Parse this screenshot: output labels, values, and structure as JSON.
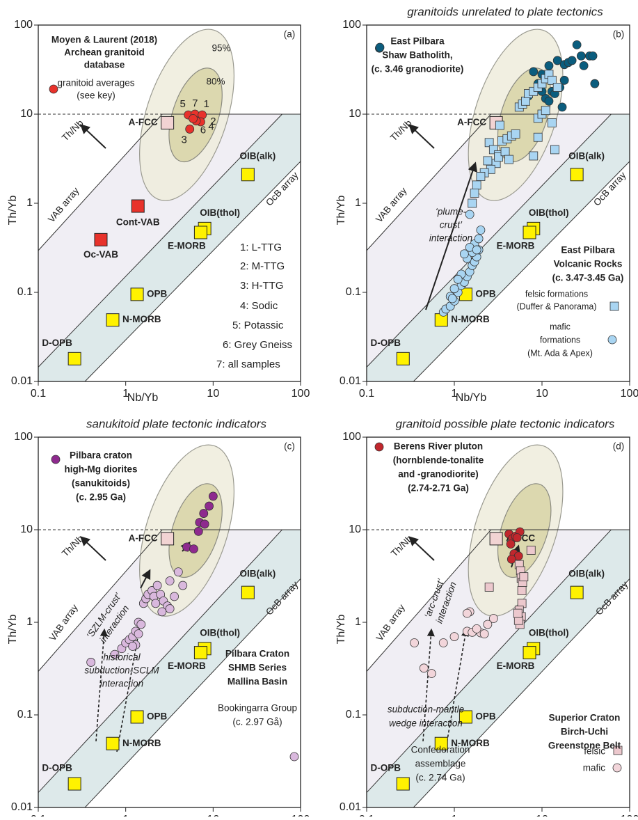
{
  "chart_data": [
    {
      "type": "scatter",
      "panel": "(a)",
      "xlabel": "Nb/Yb",
      "ylabel": "Th/Yb",
      "log_x": true,
      "log_y": true,
      "xlim": [
        0.1,
        100
      ],
      "ylim": [
        0.01,
        100
      ],
      "xticks": [
        0.1,
        1,
        10,
        100
      ],
      "yticks": [
        0.01,
        0.1,
        1,
        10,
        100
      ],
      "references": [
        {
          "label": "A-FCC",
          "x": 3,
          "y": 8,
          "color": "#f2d3d3"
        },
        {
          "label": "OIB(alk)",
          "x": 25,
          "y": 2.1,
          "color": "#fff200"
        },
        {
          "label": "OIB(thol)",
          "x": 8,
          "y": 0.52,
          "color": "#fff200"
        },
        {
          "label": "E-MORB",
          "x": 7.2,
          "y": 0.47,
          "color": "#fff200"
        },
        {
          "label": "OPB",
          "x": 1.35,
          "y": 0.095,
          "color": "#fff200"
        },
        {
          "label": "N-MORB",
          "x": 0.71,
          "y": 0.049,
          "color": "#fff200"
        },
        {
          "label": "D-OPB",
          "x": 0.26,
          "y": 0.018,
          "color": "#fff200"
        },
        {
          "label": "Cont-VAB",
          "x": 1.38,
          "y": 0.93,
          "color": "#e8322b"
        },
        {
          "label": "Oc-VAB",
          "x": 0.52,
          "y": 0.39,
          "color": "#e8322b"
        }
      ],
      "series": [
        {
          "name": [
            "granitoid averages",
            "(see key)"
          ],
          "color": "#e8322b",
          "marker": "circle",
          "labels": [
            "5",
            "7",
            "1",
            "2",
            "3",
            "6",
            "4"
          ],
          "x": [
            5.2,
            6.2,
            7.5,
            7.2,
            5.4,
            6.4,
            5.9
          ],
          "y": [
            9.8,
            10,
            9.8,
            8.2,
            6.8,
            8.4,
            8.9
          ]
        }
      ],
      "notes": [
        "Moyen & Laurent (2018)",
        "Archean granitoid",
        "database",
        "95%",
        "80%",
        "Th/Nb",
        "VAB array",
        "OcB array",
        "1: L-TTG",
        "2: M-TTG",
        "3: H-TTG",
        "4: Sodic",
        "5: Potassic",
        "6: Grey Gneiss",
        "7: all samples"
      ]
    },
    {
      "type": "scatter",
      "title": "granitoids unrelated to plate tectonics",
      "panel": "(b)",
      "xlabel": "Nb/Yb",
      "ylabel": "Th/Yb",
      "log_x": true,
      "log_y": true,
      "xlim": [
        0.1,
        100
      ],
      "ylim": [
        0.01,
        100
      ],
      "xticks": [
        0.1,
        1,
        10,
        100
      ],
      "yticks": [
        0.01,
        0.1,
        1,
        10,
        100
      ],
      "references": [
        {
          "label": "A-FCC",
          "x": 3,
          "y": 8,
          "color": "#f2d3d3"
        },
        {
          "label": "OIB(alk)",
          "x": 25,
          "y": 2.1,
          "color": "#fff200"
        },
        {
          "label": "OIB(thol)",
          "x": 8,
          "y": 0.52,
          "color": "#fff200"
        },
        {
          "label": "E-MORB",
          "x": 7.2,
          "y": 0.47,
          "color": "#fff200"
        },
        {
          "label": "OPB",
          "x": 1.35,
          "y": 0.095,
          "color": "#fff200"
        },
        {
          "label": "N-MORB",
          "x": 0.71,
          "y": 0.049,
          "color": "#fff200"
        },
        {
          "label": "D-OPB",
          "x": 0.26,
          "y": 0.018,
          "color": "#fff200"
        }
      ],
      "series": [
        {
          "name": [
            "East Pilbara",
            "Shaw Batholith,",
            "(c. 3.46 granodiorite)"
          ],
          "color": "#0b5d7e",
          "marker": "circle",
          "x": [
            0.14,
            8,
            10,
            12,
            15,
            18,
            20,
            22,
            25,
            28,
            30,
            35,
            40,
            9,
            11,
            13,
            16,
            7,
            6,
            11,
            14,
            17,
            12,
            10,
            38,
            18
          ],
          "y": [
            55,
            30,
            28,
            35,
            40,
            36,
            38,
            40,
            60,
            45,
            35,
            45,
            22,
            22,
            25,
            18,
            20,
            16,
            13,
            15,
            17,
            12,
            14,
            18,
            45,
            24
          ]
        },
        {
          "name": [
            "felsic formations",
            "(Duffer & Panorama)"
          ],
          "color": "#a9d5f2",
          "marker": "square",
          "x": [
            3.3,
            2.5,
            2.8,
            3.2,
            3.5,
            4,
            4.5,
            5,
            5.5,
            6,
            6.5,
            7,
            8,
            9,
            10,
            11,
            12,
            13,
            15,
            9,
            10,
            11,
            3,
            2.6,
            2.2,
            2,
            1.8,
            1.7,
            1.6,
            2.4,
            3.2,
            3.8,
            4.2,
            13,
            14,
            8,
            9
          ],
          "y": [
            7.5,
            4.8,
            4,
            3.5,
            5,
            5.3,
            5.7,
            6,
            12,
            13,
            14,
            17,
            18,
            20,
            22,
            25,
            28,
            24,
            20,
            9,
            10,
            11,
            2.8,
            2.4,
            2.2,
            2,
            1.6,
            1.3,
            1,
            3,
            3.3,
            3.8,
            3.1,
            8,
            4,
            3.4,
            5.5
          ]
        },
        {
          "name": [
            "mafic",
            "formations",
            "(Mt. Ada & Apex)"
          ],
          "color": "#a9d5f2",
          "marker": "circle",
          "x": [
            1.5,
            0.75,
            0.8,
            0.9,
            1,
            1.1,
            1.2,
            1.3,
            1.4,
            1.5,
            1.6,
            1.7,
            1.8,
            1.9,
            1.6,
            1.4,
            1.2,
            1,
            0.9,
            1.7,
            1.5,
            1.3,
            1.1,
            0.95,
            1.9,
            2,
            1.8
          ],
          "y": [
            0.75,
            0.06,
            0.065,
            0.07,
            0.08,
            0.1,
            0.12,
            0.13,
            0.15,
            0.17,
            0.2,
            0.22,
            0.25,
            0.3,
            0.28,
            0.24,
            0.16,
            0.11,
            0.09,
            0.35,
            0.32,
            0.27,
            0.14,
            0.085,
            0.4,
            0.5,
            0.3
          ]
        }
      ],
      "notes": [
        "Th/Nb",
        "VAB array",
        "OcB array",
        "‘plume-",
        "crust’",
        "interaction",
        "East Pilbara",
        "Volcanic Rocks",
        "(c. 3.47-3.45 Ga)"
      ]
    },
    {
      "type": "scatter",
      "title": "sanukitoid plate tectonic indicators",
      "panel": "(c)",
      "xlabel": "Nb/Yb",
      "ylabel": "Th/Yb",
      "log_x": true,
      "log_y": true,
      "xlim": [
        0.1,
        100
      ],
      "ylim": [
        0.01,
        100
      ],
      "xticks": [
        0.1,
        1,
        10,
        100
      ],
      "yticks": [
        0.01,
        0.1,
        1,
        10,
        100
      ],
      "references": [
        {
          "label": "A-FCC",
          "x": 3,
          "y": 8,
          "color": "#f2d3d3"
        },
        {
          "label": "OIB(alk)",
          "x": 25,
          "y": 2.1,
          "color": "#fff200"
        },
        {
          "label": "OIB(thol)",
          "x": 8,
          "y": 0.52,
          "color": "#fff200"
        },
        {
          "label": "E-MORB",
          "x": 7.2,
          "y": 0.47,
          "color": "#fff200"
        },
        {
          "label": "OPB",
          "x": 1.35,
          "y": 0.095,
          "color": "#fff200"
        },
        {
          "label": "N-MORB",
          "x": 0.71,
          "y": 0.049,
          "color": "#fff200"
        },
        {
          "label": "D-OPB",
          "x": 0.26,
          "y": 0.018,
          "color": "#fff200"
        }
      ],
      "series": [
        {
          "name": [
            "Pilbara craton",
            "high-Mg diorites",
            "(sanukitoids)",
            "(c. 2.95 Ga)"
          ],
          "color": "#8e2a8e",
          "marker": "circle",
          "x": [
            10,
            9,
            7.8,
            7,
            8,
            6.8,
            5,
            6
          ],
          "y": [
            23,
            18,
            15,
            12,
            11.5,
            9.6,
            6.5,
            6.2
          ]
        },
        {
          "name": [
            "Bookingarra Group",
            "(c. 2.97 Gå)"
          ],
          "color": "#d9b8dd",
          "marker": "circle",
          "x": [
            0.4,
            0.75,
            0.9,
            1,
            1.1,
            1.2,
            1.3,
            1.4,
            1.5,
            1.6,
            1.7,
            1.8,
            2,
            2.1,
            2.3,
            2.5,
            2.7,
            3,
            3.2,
            3.6,
            4,
            4.5,
            1.3,
            1.4,
            2.2,
            2.6,
            3.2,
            1.2
          ],
          "y": [
            0.37,
            0.45,
            0.52,
            0.6,
            0.65,
            0.7,
            0.8,
            1,
            0.95,
            1.6,
            1.8,
            2,
            2.2,
            1.9,
            2.5,
            2,
            1.7,
            1.5,
            1.4,
            1.9,
            3.5,
            2.5,
            0.57,
            0.75,
            1.6,
            1.3,
            2.8,
            0.55
          ]
        }
      ],
      "notes": [
        "Th/Nb",
        "VAB array",
        "OcB array",
        "‘SZLM-crust’",
        "interaction",
        "historical",
        "subduction-SCLM",
        "interaction",
        "Pilbara Craton",
        "SHMB Series",
        "Mallina Basin"
      ]
    },
    {
      "type": "scatter",
      "title": "granitoid possible plate tectonic indicators",
      "panel": "(d)",
      "xlabel": "Nb/Yb",
      "ylabel": "Th/Yb",
      "log_x": true,
      "log_y": true,
      "xlim": [
        0.1,
        100
      ],
      "ylim": [
        0.01,
        100
      ],
      "xticks": [
        0.1,
        1,
        10,
        100
      ],
      "yticks": [
        0.01,
        0.1,
        1,
        10,
        100
      ],
      "references": [
        {
          "label": "A-FCC",
          "x": 3,
          "y": 8,
          "color": "#f2d3d3"
        },
        {
          "label": "OIB(alk)",
          "x": 25,
          "y": 2.1,
          "color": "#fff200"
        },
        {
          "label": "OIB(thol)",
          "x": 8,
          "y": 0.52,
          "color": "#fff200"
        },
        {
          "label": "E-MORB",
          "x": 7.2,
          "y": 0.47,
          "color": "#fff200"
        },
        {
          "label": "OPB",
          "x": 1.35,
          "y": 0.095,
          "color": "#fff200"
        },
        {
          "label": "N-MORB",
          "x": 0.71,
          "y": 0.049,
          "color": "#fff200"
        },
        {
          "label": "D-OPB",
          "x": 0.26,
          "y": 0.018,
          "color": "#fff200"
        }
      ],
      "series": [
        {
          "name": [
            "Berens River pluton",
            "(hornblende-tonalite",
            "and -granodiorite)",
            "(2.74-2.71 Ga)"
          ],
          "color": "#c1272d",
          "marker": "circle",
          "x": [
            4.2,
            4.6,
            5,
            5.6,
            5.2,
            4.4,
            4.8,
            5.4,
            4.5
          ],
          "y": [
            9,
            8,
            8.5,
            9.5,
            8.2,
            7,
            5.5,
            5.2,
            4.8
          ]
        },
        {
          "name": [
            "felsic"
          ],
          "color": "#ecc8cd",
          "marker": "square",
          "x": [
            2.5,
            5.5,
            5.7,
            5.8,
            6,
            6.2,
            5.9,
            5.5,
            5.8,
            5.6,
            5.4,
            5.9,
            7.5,
            5.3
          ],
          "y": [
            2.4,
            4.2,
            3.6,
            3,
            2.7,
            3.1,
            1.6,
            1.35,
            1.15,
            0.95,
            1.05,
            2.2,
            6,
            1.25
          ]
        },
        {
          "name": [
            "mafic"
          ],
          "color": "#f2d5da",
          "marker": "circle",
          "x": [
            0.55,
            0.35,
            0.45,
            0.75,
            1,
            1.4,
            1.6,
            2,
            2.4,
            2.8,
            1.5,
            1.8,
            2.2,
            1.4
          ],
          "y": [
            0.28,
            0.6,
            0.32,
            0.6,
            0.7,
            0.8,
            0.78,
            0.77,
            0.95,
            1.1,
            1.3,
            0.85,
            0.75,
            1.25
          ]
        }
      ],
      "notes": [
        "Th/Nb",
        "VAB array",
        "OcB array",
        "‘arc-crust’",
        "interaction",
        "subduction-mantle",
        "wedge interaction",
        "Superior Craton",
        "Birch-Uchi",
        "Greenstone Belt",
        "Confederation",
        "assemblage",
        "(c. 2.74 Ga)"
      ]
    }
  ]
}
